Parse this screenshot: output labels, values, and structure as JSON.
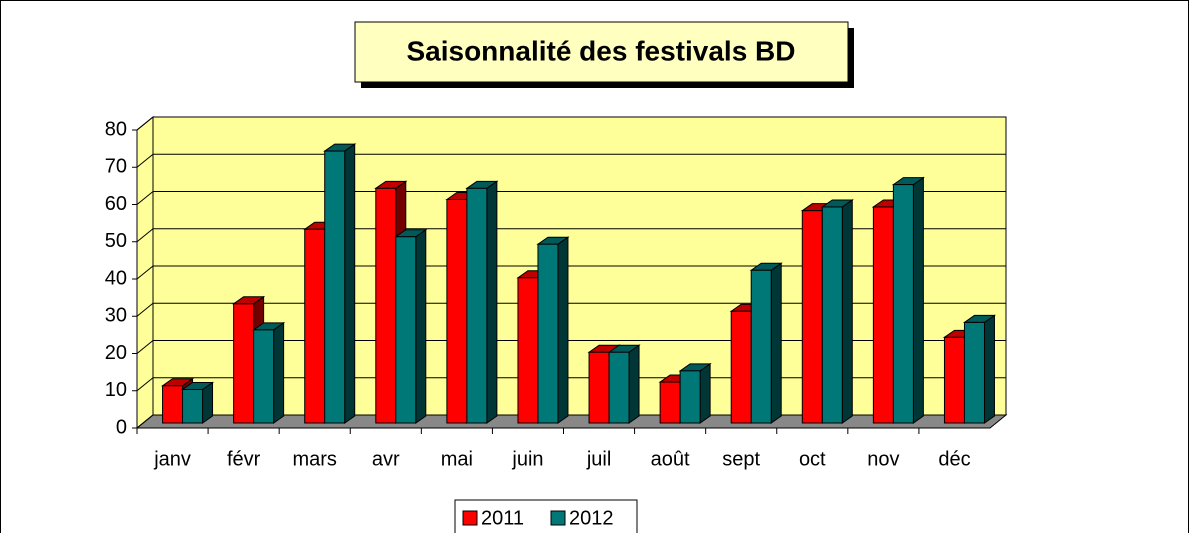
{
  "chart_data": {
    "type": "bar",
    "title": "Saisonnalité des festivals BD",
    "categories": [
      "janv",
      "févr",
      "mars",
      "avr",
      "mai",
      "juin",
      "juil",
      "août",
      "sept",
      "oct",
      "nov",
      "déc"
    ],
    "series": [
      {
        "name": "2011",
        "color": "#ff0000",
        "values": [
          10,
          32,
          52,
          63,
          60,
          39,
          19,
          11,
          30,
          57,
          58,
          23
        ]
      },
      {
        "name": "2012",
        "color": "#007878",
        "values": [
          9,
          25,
          73,
          50,
          63,
          48,
          19,
          14,
          41,
          58,
          64,
          27
        ]
      }
    ],
    "ylim": [
      0,
      80
    ],
    "yticks": [
      0,
      10,
      20,
      30,
      40,
      50,
      60,
      70,
      80
    ],
    "grid": true,
    "legend": "bottom"
  }
}
